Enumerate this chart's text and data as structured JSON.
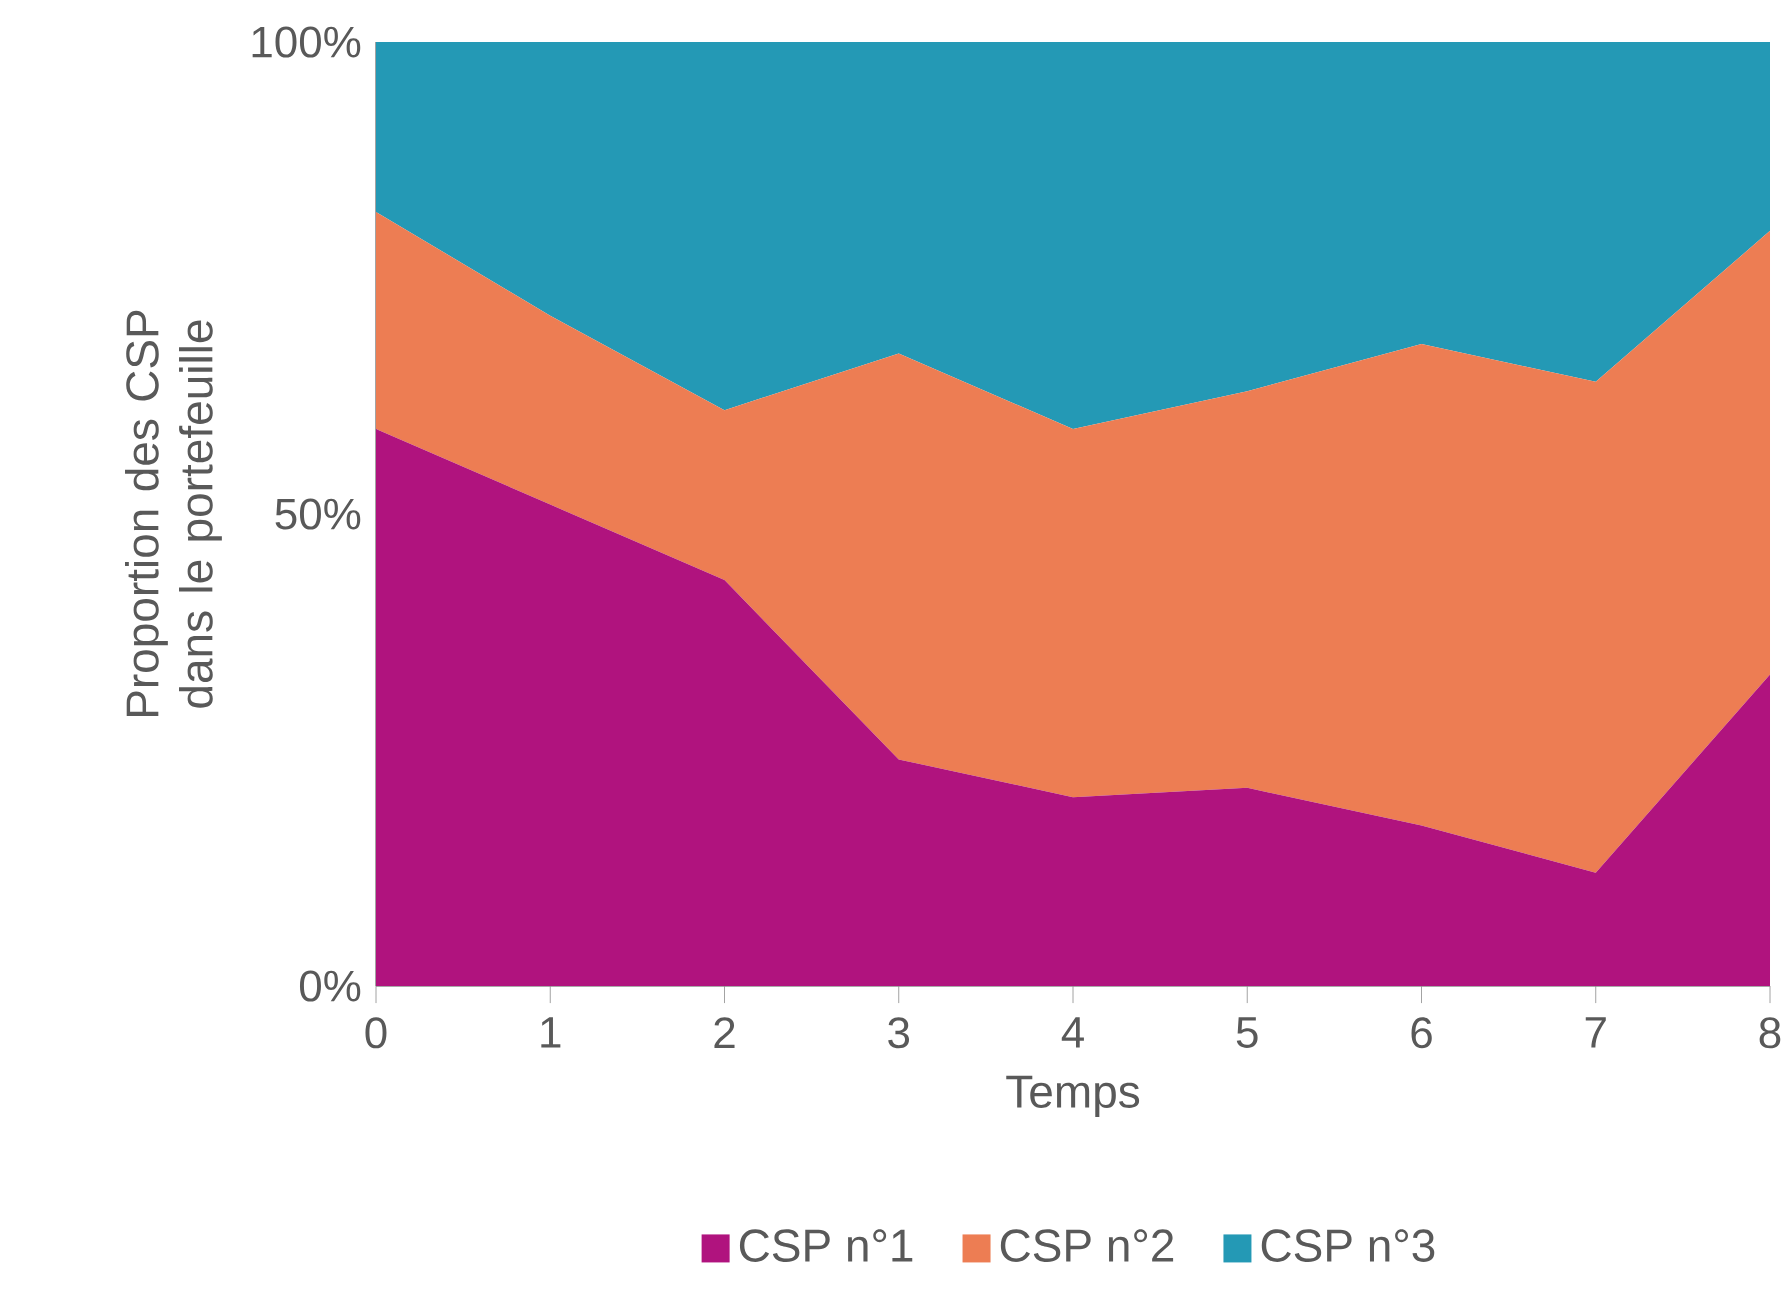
{
  "chart_data": {
    "type": "area",
    "stacked": true,
    "xlabel": "Temps",
    "ylabel": "Proportion des CSP dans le portefeuille",
    "x": [
      0,
      1,
      2,
      3,
      4,
      5,
      6,
      7,
      8
    ],
    "xlim": [
      0,
      8
    ],
    "xticks": [
      0,
      1,
      2,
      3,
      4,
      5,
      6,
      7,
      8
    ],
    "ylim": [
      0,
      100
    ],
    "yticks": [
      {
        "value": 0,
        "label": "0%"
      },
      {
        "value": 50,
        "label": "50%"
      },
      {
        "value": 100,
        "label": "100%"
      }
    ],
    "legend": "bottom",
    "series": [
      {
        "name": "CSP n°1",
        "color": "#b0137e",
        "values": [
          59,
          51,
          43,
          24,
          20,
          21,
          17,
          12,
          33
        ]
      },
      {
        "name": "CSP n°2",
        "color": "#ed7d53",
        "values": [
          23,
          20,
          18,
          43,
          39,
          42,
          51,
          52,
          47
        ]
      },
      {
        "name": "CSP n°3",
        "color": "#2499b5",
        "values": [
          18,
          29,
          39,
          33,
          41,
          37,
          32,
          36,
          20
        ]
      }
    ]
  }
}
